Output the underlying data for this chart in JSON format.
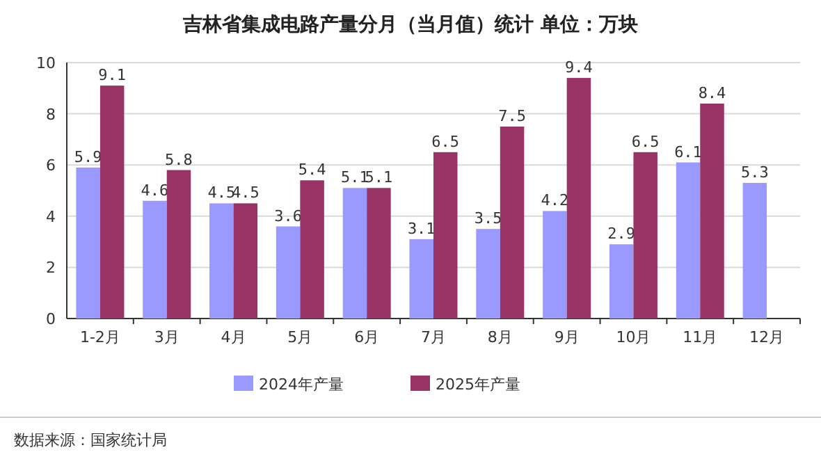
{
  "chart_data": {
    "type": "bar",
    "title": "吉林省集成电路产量分月（当月值）统计  单位：万块",
    "categories": [
      "1-2月",
      "3月",
      "4月",
      "5月",
      "6月",
      "7月",
      "8月",
      "9月",
      "10月",
      "11月",
      "12月"
    ],
    "series": [
      {
        "name": "2024年产量",
        "color": "#9999ff",
        "values": [
          5.9,
          4.6,
          4.5,
          3.6,
          5.1,
          3.1,
          3.5,
          4.2,
          2.9,
          6.1,
          5.3
        ]
      },
      {
        "name": "2025年产量",
        "color": "#993366",
        "values": [
          9.1,
          5.8,
          4.5,
          5.4,
          5.1,
          6.5,
          7.5,
          9.4,
          6.5,
          8.4,
          null
        ]
      }
    ],
    "ylim": [
      0,
      10
    ],
    "yticks": [
      0,
      2,
      4,
      6,
      8,
      10
    ],
    "grid": "y",
    "legend": "bottom",
    "data_labels": true,
    "annotations": [
      "数据来源：国家统计局"
    ]
  }
}
